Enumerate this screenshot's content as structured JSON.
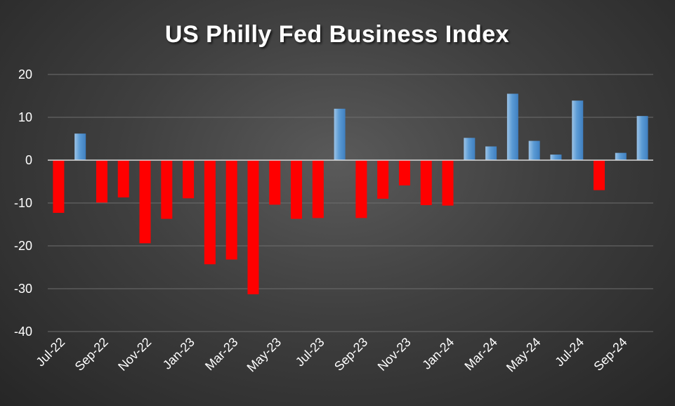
{
  "chart_data": {
    "type": "bar",
    "title": "US Philly Fed Business Index",
    "xlabel": "",
    "ylabel": "",
    "ylim": [
      -40,
      20
    ],
    "y_ticks": [
      "20",
      "10",
      "0",
      "-10",
      "-20",
      "-30",
      "-40"
    ],
    "x_tick_labels": [
      "Jul-22",
      "Sep-22",
      "Nov-22",
      "Jan-23",
      "Mar-23",
      "May-23",
      "Jul-23",
      "Sep-23",
      "Nov-23",
      "Jan-24",
      "Mar-24",
      "May-24",
      "Jul-24",
      "Sep-24"
    ],
    "categories": [
      "Jul-22",
      "Aug-22",
      "Sep-22",
      "Oct-22",
      "Nov-22",
      "Dec-22",
      "Jan-23",
      "Feb-23",
      "Mar-23",
      "Apr-23",
      "May-23",
      "Jun-23",
      "Jul-23",
      "Aug-23",
      "Sep-23",
      "Oct-23",
      "Nov-23",
      "Dec-23",
      "Jan-24",
      "Feb-24",
      "Mar-24",
      "Apr-24",
      "May-24",
      "Jun-24",
      "Jul-24",
      "Aug-24",
      "Sep-24",
      "Oct-24"
    ],
    "values": [
      -12.3,
      6.2,
      -9.9,
      -8.7,
      -19.4,
      -13.7,
      -8.9,
      -24.3,
      -23.2,
      -31.3,
      -10.4,
      -13.7,
      -13.5,
      12.0,
      -13.5,
      -9.0,
      -5.9,
      -10.5,
      -10.6,
      5.2,
      3.2,
      15.5,
      4.5,
      1.3,
      13.9,
      -7.0,
      1.7,
      10.3
    ],
    "grid": true,
    "legend": "none",
    "colors": {
      "positive": "#5b9bd5",
      "negative": "#ff0000",
      "text": "#ffffff",
      "gridline": "#6e6e6e",
      "axis": "#d9d9d9"
    }
  }
}
